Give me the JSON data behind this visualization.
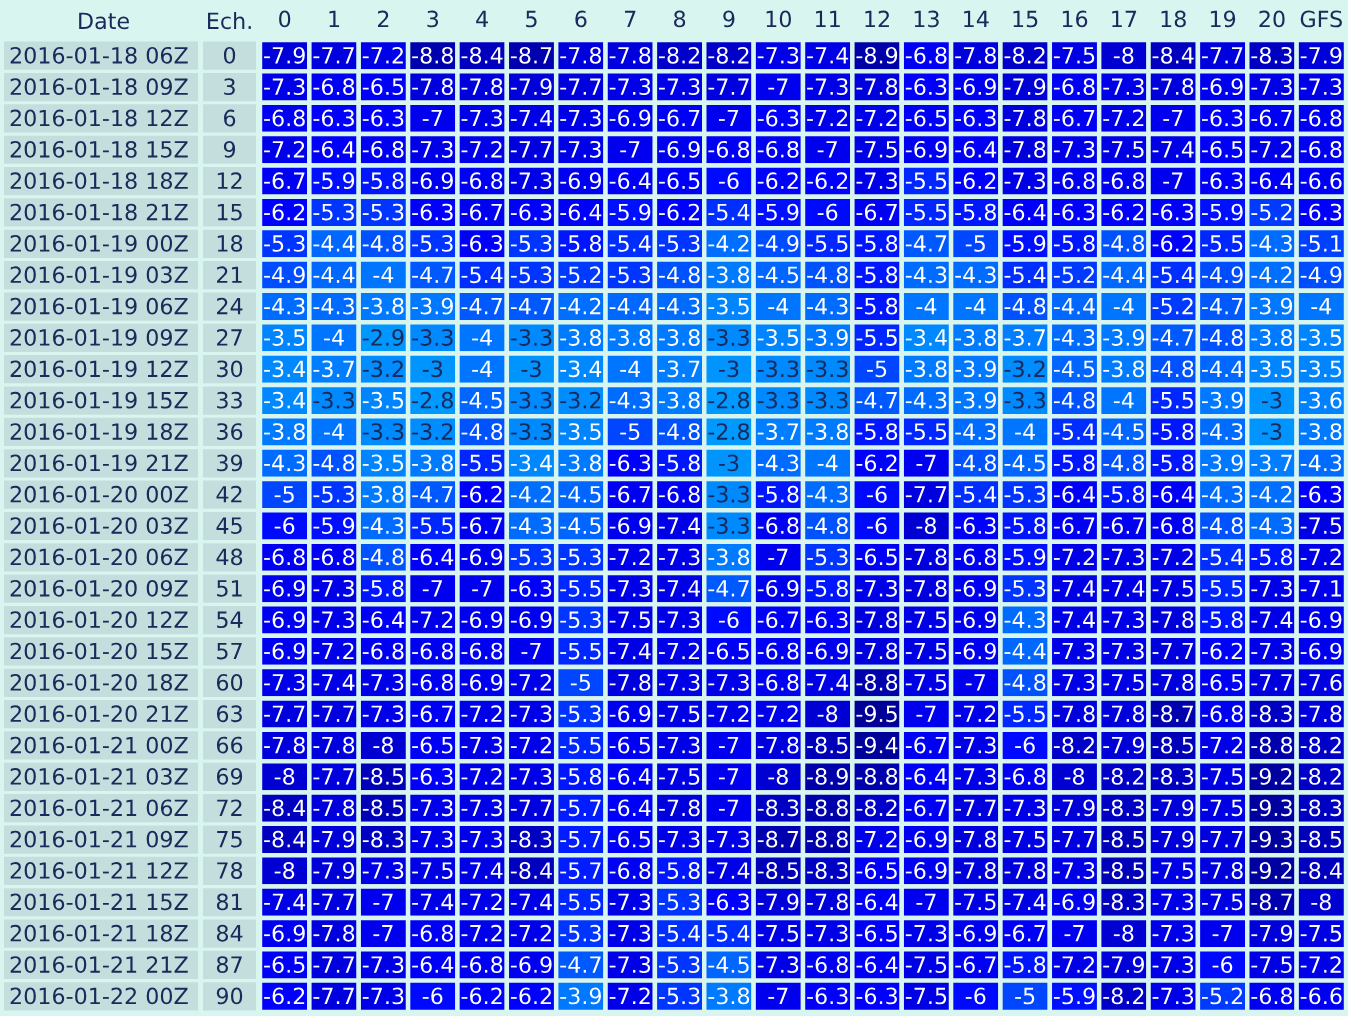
{
  "chart_data": {
    "type": "heatmap",
    "ylabel": "Date",
    "y2label": "Ech.",
    "categories": [
      "0",
      "1",
      "2",
      "3",
      "4",
      "5",
      "6",
      "7",
      "8",
      "9",
      "10",
      "11",
      "12",
      "13",
      "14",
      "15",
      "16",
      "17",
      "18",
      "19",
      "20",
      "GFS"
    ],
    "y_categories": [
      "2016-01-18 06Z",
      "2016-01-18 09Z",
      "2016-01-18 12Z",
      "2016-01-18 15Z",
      "2016-01-18 18Z",
      "2016-01-18 21Z",
      "2016-01-19 00Z",
      "2016-01-19 03Z",
      "2016-01-19 06Z",
      "2016-01-19 09Z",
      "2016-01-19 12Z",
      "2016-01-19 15Z",
      "2016-01-19 18Z",
      "2016-01-19 21Z",
      "2016-01-20 00Z",
      "2016-01-20 03Z",
      "2016-01-20 06Z",
      "2016-01-20 09Z",
      "2016-01-20 12Z",
      "2016-01-20 15Z",
      "2016-01-20 18Z",
      "2016-01-20 21Z",
      "2016-01-21 00Z",
      "2016-01-21 03Z",
      "2016-01-21 06Z",
      "2016-01-21 09Z",
      "2016-01-21 12Z",
      "2016-01-21 15Z",
      "2016-01-21 18Z",
      "2016-01-21 21Z",
      "2016-01-22 00Z"
    ],
    "y2_categories": [
      "0",
      "3",
      "6",
      "9",
      "12",
      "15",
      "18",
      "21",
      "24",
      "27",
      "30",
      "33",
      "36",
      "39",
      "42",
      "45",
      "48",
      "51",
      "54",
      "57",
      "60",
      "63",
      "66",
      "69",
      "72",
      "75",
      "78",
      "81",
      "84",
      "87",
      "90"
    ],
    "colors": [
      "#0099ff",
      "#0080ff",
      "#0066ff",
      "#0033ff",
      "#0000ff",
      "#0000ee",
      "#0000dd",
      "#0000b0",
      "#000099"
    ],
    "data_labels": true,
    "cells": [
      [
        -7.9,
        -7.7,
        -7.2,
        -8.8,
        -8.4,
        -8.7,
        -7.8,
        -7.8,
        -8.2,
        -8.2,
        -7.3,
        -7.4,
        -8.9,
        -6.8,
        -7.8,
        -8.2,
        -7.5,
        -8,
        -8.4,
        -7.7,
        -8.3,
        -7.9
      ],
      [
        -7.3,
        -6.8,
        -6.5,
        -7.8,
        -7.8,
        -7.9,
        -7.7,
        -7.3,
        -7.3,
        -7.7,
        -7,
        -7.3,
        -7.8,
        -6.3,
        -6.9,
        -7.9,
        -6.8,
        -7.3,
        -7.8,
        -6.9,
        -7.3,
        -7.3
      ],
      [
        -6.8,
        -6.3,
        -6.3,
        -7,
        -7.3,
        -7.4,
        -7.3,
        -6.9,
        -6.7,
        -7,
        -6.3,
        -7.2,
        -7.2,
        -6.5,
        -6.3,
        -7.8,
        -6.7,
        -7.2,
        -7,
        -6.3,
        -6.7,
        -6.8
      ],
      [
        -7.2,
        -6.4,
        -6.8,
        -7.3,
        -7.2,
        -7.7,
        -7.3,
        -7,
        -6.9,
        -6.8,
        -6.8,
        -7,
        -7.5,
        -6.9,
        -6.4,
        -7.8,
        -7.3,
        -7.5,
        -7.4,
        -6.5,
        -7.2,
        -6.8
      ],
      [
        -6.7,
        -5.9,
        -5.8,
        -6.9,
        -6.8,
        -7.3,
        -6.9,
        -6.4,
        -6.5,
        -6,
        -6.2,
        -6.2,
        -7.3,
        -5.5,
        -6.2,
        -7.3,
        -6.8,
        -6.8,
        -7,
        -6.3,
        -6.4,
        -6.6
      ],
      [
        -6.2,
        -5.3,
        -5.3,
        -6.3,
        -6.7,
        -6.3,
        -6.4,
        -5.9,
        -6.2,
        -5.4,
        -5.9,
        -6,
        -6.7,
        -5.5,
        -5.8,
        -6.4,
        -6.3,
        -6.2,
        -6.3,
        -5.9,
        -5.2,
        -6.3
      ],
      [
        -5.3,
        -4.4,
        -4.8,
        -5.3,
        -6.3,
        -5.3,
        -5.8,
        -5.4,
        -5.3,
        -4.2,
        -4.9,
        -5.5,
        -5.8,
        -4.7,
        -5,
        -5.9,
        -5.8,
        -4.8,
        -6.2,
        -5.5,
        -4.3,
        -5.1
      ],
      [
        -4.9,
        -4.4,
        -4,
        -4.7,
        -5.4,
        -5.3,
        -5.2,
        -5.3,
        -4.8,
        -3.8,
        -4.5,
        -4.8,
        -5.8,
        -4.3,
        -4.3,
        -5.4,
        -5.2,
        -4.4,
        -5.4,
        -4.9,
        -4.2,
        -4.9
      ],
      [
        -4.3,
        -4.3,
        -3.8,
        -3.9,
        -4.7,
        -4.7,
        -4.2,
        -4.4,
        -4.3,
        -3.5,
        -4,
        -4.3,
        -5.8,
        -4,
        -4,
        -4.8,
        -4.4,
        -4,
        -5.2,
        -4.7,
        -3.9,
        -4
      ],
      [
        -3.5,
        -4,
        -2.9,
        -3.3,
        -4,
        -3.3,
        -3.8,
        -3.8,
        -3.8,
        -3.3,
        -3.5,
        -3.9,
        -5.5,
        -3.4,
        -3.8,
        -3.7,
        -4.3,
        -3.9,
        -4.7,
        -4.8,
        -3.8,
        -3.5
      ],
      [
        -3.4,
        -3.7,
        -3.2,
        -3,
        -4,
        -3,
        -3.4,
        -4,
        -3.7,
        -3,
        -3.3,
        -3.3,
        -5,
        -3.8,
        -3.9,
        -3.2,
        -4.5,
        -3.8,
        -4.8,
        -4.4,
        -3.5,
        -3.5
      ],
      [
        -3.4,
        -3.3,
        -3.5,
        -2.8,
        -4.5,
        -3.3,
        -3.2,
        -4.3,
        -3.8,
        -2.8,
        -3.3,
        -3.3,
        -4.7,
        -4.3,
        -3.9,
        -3.3,
        -4.8,
        -4,
        -5.5,
        -3.9,
        -3,
        -3.6
      ],
      [
        -3.8,
        -4,
        -3.3,
        -3.2,
        -4.8,
        -3.3,
        -3.5,
        -5,
        -4.8,
        -2.8,
        -3.7,
        -3.8,
        -5.8,
        -5.5,
        -4.3,
        -4,
        -5.4,
        -4.5,
        -5.8,
        -4.3,
        -3,
        -3.8
      ],
      [
        -4.3,
        -4.8,
        -3.5,
        -3.8,
        -5.5,
        -3.4,
        -3.8,
        -6.3,
        -5.8,
        -3,
        -4.3,
        -4,
        -6.2,
        -7,
        -4.8,
        -4.5,
        -5.8,
        -4.8,
        -5.8,
        -3.9,
        -3.7,
        -4.3
      ],
      [
        -5,
        -5.3,
        -3.8,
        -4.7,
        -6.2,
        -4.2,
        -4.5,
        -6.7,
        -6.8,
        -3.3,
        -5.8,
        -4.3,
        -6,
        -7.7,
        -5.4,
        -5.3,
        -6.4,
        -5.8,
        -6.4,
        -4.3,
        -4.2,
        -6.3
      ],
      [
        -6,
        -5.9,
        -4.3,
        -5.5,
        -6.7,
        -4.3,
        -4.5,
        -6.9,
        -7.4,
        -3.3,
        -6.8,
        -4.8,
        -6,
        -8,
        -6.3,
        -5.8,
        -6.7,
        -6.7,
        -6.8,
        -4.8,
        -4.3,
        -7.5
      ],
      [
        -6.8,
        -6.8,
        -4.8,
        -6.4,
        -6.9,
        -5.3,
        -5.3,
        -7.2,
        -7.3,
        -3.8,
        -7,
        -5.3,
        -6.5,
        -7.8,
        -6.8,
        -5.9,
        -7.2,
        -7.3,
        -7.2,
        -5.4,
        -5.8,
        -7.2
      ],
      [
        -6.9,
        -7.3,
        -5.8,
        -7,
        -7,
        -6.3,
        -5.5,
        -7.3,
        -7.4,
        -4.7,
        -6.9,
        -5.8,
        -7.3,
        -7.8,
        -6.9,
        -5.3,
        -7.4,
        -7.4,
        -7.5,
        -5.5,
        -7.3,
        -7.1
      ],
      [
        -6.9,
        -7.3,
        -6.4,
        -7.2,
        -6.9,
        -6.9,
        -5.3,
        -7.5,
        -7.3,
        -6,
        -6.7,
        -6.3,
        -7.8,
        -7.5,
        -6.9,
        -4.3,
        -7.4,
        -7.3,
        -7.8,
        -5.8,
        -7.4,
        -6.9
      ],
      [
        -6.9,
        -7.2,
        -6.8,
        -6.8,
        -6.8,
        -7,
        -5.5,
        -7.4,
        -7.2,
        -6.5,
        -6.8,
        -6.9,
        -7.8,
        -7.5,
        -6.9,
        -4.4,
        -7.3,
        -7.3,
        -7.7,
        -6.2,
        -7.3,
        -6.9
      ],
      [
        -7.3,
        -7.4,
        -7.3,
        -6.8,
        -6.9,
        -7.2,
        -5,
        -7.8,
        -7.3,
        -7.3,
        -6.8,
        -7.4,
        -8.8,
        -7.5,
        -7,
        -4.8,
        -7.3,
        -7.5,
        -7.8,
        -6.5,
        -7.7,
        -7.6
      ],
      [
        -7.7,
        -7.7,
        -7.3,
        -6.7,
        -7.2,
        -7.3,
        -5.3,
        -6.9,
        -7.5,
        -7.2,
        -7.2,
        -8,
        -9.5,
        -7,
        -7.2,
        -5.5,
        -7.8,
        -7.8,
        -8.7,
        -6.8,
        -8.3,
        -7.8
      ],
      [
        -7.8,
        -7.8,
        -8,
        -6.5,
        -7.3,
        -7.2,
        -5.5,
        -6.5,
        -7.3,
        -7,
        -7.8,
        -8.5,
        -9.4,
        -6.7,
        -7.3,
        -6,
        -8.2,
        -7.9,
        -8.5,
        -7.2,
        -8.8,
        -8.2
      ],
      [
        -8,
        -7.7,
        -8.5,
        -6.3,
        -7.2,
        -7.3,
        -5.8,
        -6.4,
        -7.5,
        -7,
        -8,
        -8.9,
        -8.8,
        -6.4,
        -7.3,
        -6.8,
        -8,
        -8.2,
        -8.3,
        -7.5,
        -9.2,
        -8.2
      ],
      [
        -8.4,
        -7.8,
        -8.5,
        -7.3,
        -7.3,
        -7.7,
        -5.7,
        -6.4,
        -7.8,
        -7,
        -8.3,
        -8.8,
        -8.2,
        -6.7,
        -7.7,
        -7.3,
        -7.9,
        -8.3,
        -7.9,
        -7.5,
        -9.3,
        -8.3
      ],
      [
        -8.4,
        -7.9,
        -8.3,
        -7.3,
        -7.3,
        -8.3,
        -5.7,
        -6.5,
        -7.3,
        -7.3,
        -8.7,
        -8.8,
        -7.2,
        -6.9,
        -7.8,
        -7.5,
        -7.7,
        -8.5,
        -7.9,
        -7.7,
        -9.3,
        -8.5
      ],
      [
        -8,
        -7.9,
        -7.3,
        -7.5,
        -7.4,
        -8.4,
        -5.7,
        -6.8,
        -5.8,
        -7.4,
        -8.5,
        -8.3,
        -6.5,
        -6.9,
        -7.8,
        -7.8,
        -7.3,
        -8.5,
        -7.5,
        -7.8,
        -9.2,
        -8.4
      ],
      [
        -7.4,
        -7.7,
        -7,
        -7.4,
        -7.2,
        -7.4,
        -5.5,
        -7.3,
        -5.3,
        -6.3,
        -7.9,
        -7.8,
        -6.4,
        -7,
        -7.5,
        -7.4,
        -6.9,
        -8.3,
        -7.3,
        -7.5,
        -8.7,
        -8
      ],
      [
        -6.9,
        -7.8,
        -7,
        -6.8,
        -7.2,
        -7.2,
        -5.3,
        -7.3,
        -5.4,
        -5.4,
        -7.5,
        -7.3,
        -6.5,
        -7.3,
        -6.9,
        -6.7,
        -7,
        -8,
        -7.3,
        -7,
        -7.9,
        -7.5
      ],
      [
        -6.5,
        -7.7,
        -7.3,
        -6.4,
        -6.8,
        -6.9,
        -4.7,
        -7.3,
        -5.3,
        -4.5,
        -7.3,
        -6.8,
        -6.4,
        -7.5,
        -6.7,
        -5.8,
        -7.2,
        -7.9,
        -7.3,
        -6,
        -7.5,
        -7.2
      ],
      [
        -6.2,
        -7.7,
        -7.3,
        -6,
        -6.2,
        -6.2,
        -3.9,
        -7.2,
        -5.3,
        -3.8,
        -7,
        -6.3,
        -6.3,
        -7.5,
        -6,
        -5,
        -5.9,
        -8.2,
        -7.3,
        -5.2,
        -6.8,
        -6.6
      ]
    ]
  }
}
